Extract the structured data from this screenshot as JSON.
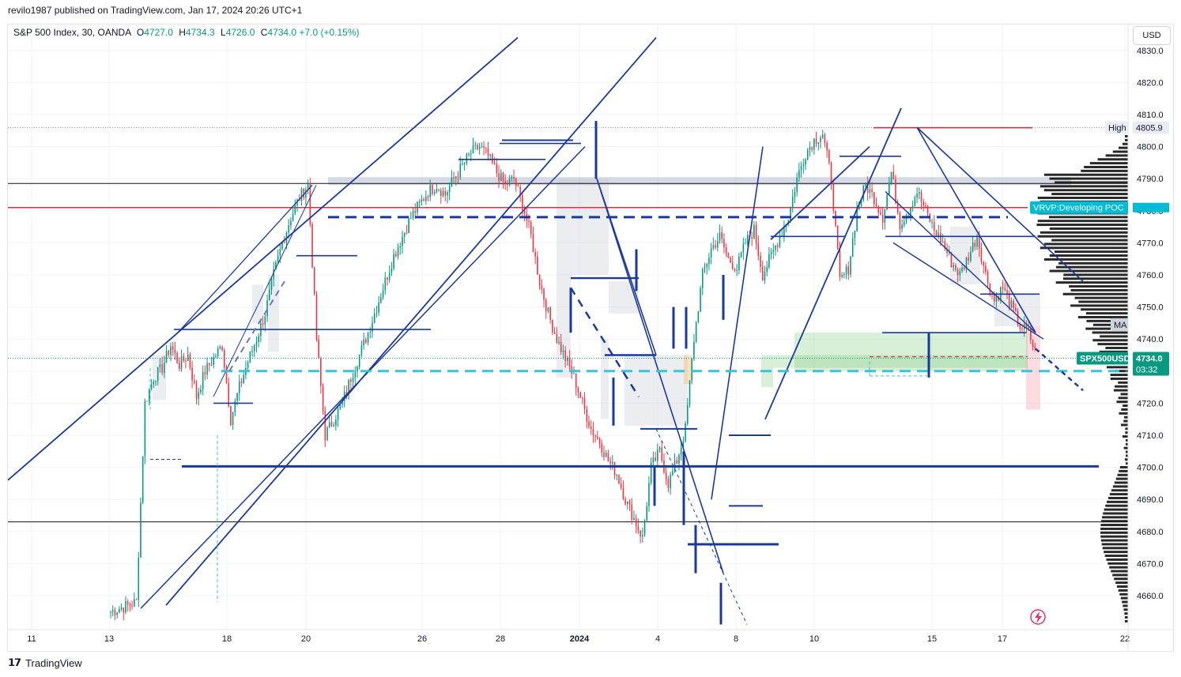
{
  "publisher_caption": "revilo1987 published on TradingView.com, Jan 17, 2024 20:26 UTC+1",
  "legend": {
    "symbol": "S&P 500 Index, 30, OANDA",
    "o_label": "O",
    "o_value": "4727.0",
    "h_label": "H",
    "h_value": "4734.3",
    "l_label": "L",
    "l_value": "4726.0",
    "c_label": "C",
    "c_value": "4734.0",
    "change": "+7.0 (+0.15%)"
  },
  "currency_button": "USD",
  "brand": "TradingView",
  "colors": {
    "up": "#089981",
    "down": "#f23645",
    "drawing_navy": "#1a3a9a",
    "cyan_dash": "#36c5d9",
    "poc_label_bg": "#00bcd4",
    "price_label_bg": "#089981",
    "high_line": "#e03040"
  },
  "chart_data": {
    "type": "line",
    "title": "",
    "xlabel": "",
    "ylabel": "",
    "ylim": [
      4651,
      4834
    ],
    "y_ticks": [
      "4830.0",
      "4820.0",
      "4810.0",
      "4800.0",
      "4790.0",
      "4780.0",
      "4770.0",
      "4760.0",
      "4750.0",
      "4740.0",
      "4730.0",
      "4720.0",
      "4710.0",
      "4700.0",
      "4690.0",
      "4680.0",
      "4670.0",
      "4660.0"
    ],
    "x_ticks": [
      "11",
      "13",
      "18",
      "20",
      "26",
      "28",
      "2024",
      "4",
      "8",
      "10",
      "15",
      "17",
      "22"
    ],
    "series": [
      {
        "values": [
          4655,
          4656,
          4657,
          4658,
          4720,
          4728,
          4731,
          4738,
          4732,
          4735,
          4722,
          4730,
          4734,
          4738,
          4715,
          4725,
          4733,
          4740,
          4748,
          4760,
          4770,
          4778,
          4784,
          4788,
          4740,
          4710,
          4715,
          4720,
          4728,
          4735,
          4742,
          4750,
          4758,
          4766,
          4772,
          4778,
          4782,
          4786,
          4788,
          4785,
          4790,
          4794,
          4798,
          4800,
          4797,
          4792,
          4788,
          4790,
          4782,
          4772,
          4758,
          4748,
          4740,
          4734,
          4728,
          4720,
          4712,
          4708,
          4702,
          4698,
          4690,
          4684,
          4678,
          4700,
          4705,
          4695,
          4702,
          4712,
          4740,
          4760,
          4768,
          4772,
          4765,
          4762,
          4770,
          4774,
          4760,
          4766,
          4772,
          4778,
          4790,
          4798,
          4802,
          4804,
          4790,
          4758,
          4762,
          4780,
          4788,
          4784,
          4778,
          4792,
          4776,
          4780,
          4786,
          4780,
          4774,
          4770,
          4764,
          4760,
          4766,
          4772,
          4760,
          4752,
          4756,
          4750,
          4744,
          4742,
          4734
        ]
      }
    ],
    "annotations": {
      "high_label": "High",
      "high_value": "4805.9",
      "poc_label": "VRVP:Developing POC",
      "ma_label": "MA",
      "symbol_label": "SPX500USD",
      "current_price": "4734.0",
      "countdown": "03:32"
    },
    "levels": {
      "high": 4805.9,
      "poc": 4781,
      "black_upper": 4788.5,
      "black_lower": 4683,
      "current": 4734.0,
      "navy_support": 4700.3,
      "navy_dashed": 4778,
      "cyan_dashed": 4730
    },
    "grid": true,
    "volume_profile": "right"
  }
}
